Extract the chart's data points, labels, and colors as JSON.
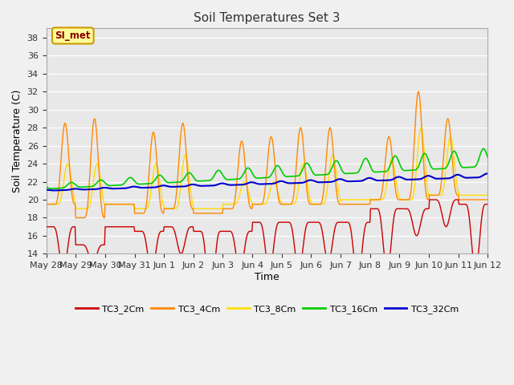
{
  "title": "Soil Temperatures Set 3",
  "xlabel": "Time",
  "ylabel": "Soil Temperature (C)",
  "ylim": [
    14,
    39
  ],
  "yticks": [
    14,
    16,
    18,
    20,
    22,
    24,
    26,
    28,
    30,
    32,
    34,
    36,
    38
  ],
  "fig_bg": "#f0f0f0",
  "plot_bg": "#e8e8e8",
  "series_colors": {
    "TC3_2Cm": "#cc0000",
    "TC3_4Cm": "#ff8800",
    "TC3_8Cm": "#ffdd00",
    "TC3_16Cm": "#00cc00",
    "TC3_32Cm": "#0000cc"
  },
  "annotation_text": "SI_met",
  "annotation_color": "#8b0000",
  "annotation_bg": "#ffff99",
  "annotation_border": "#cc9900",
  "n_days": 15,
  "pts_per_day": 48,
  "tick_labels": [
    "May 28",
    "May 29",
    "May 30",
    "May 31",
    "Jun 1",
    "Jun 2",
    "Jun 3",
    "Jun 4",
    "Jun 5",
    "Jun 6",
    "Jun 7",
    "Jun 8",
    "Jun 9",
    "Jun 10",
    "Jun 11",
    "Jun 12"
  ]
}
